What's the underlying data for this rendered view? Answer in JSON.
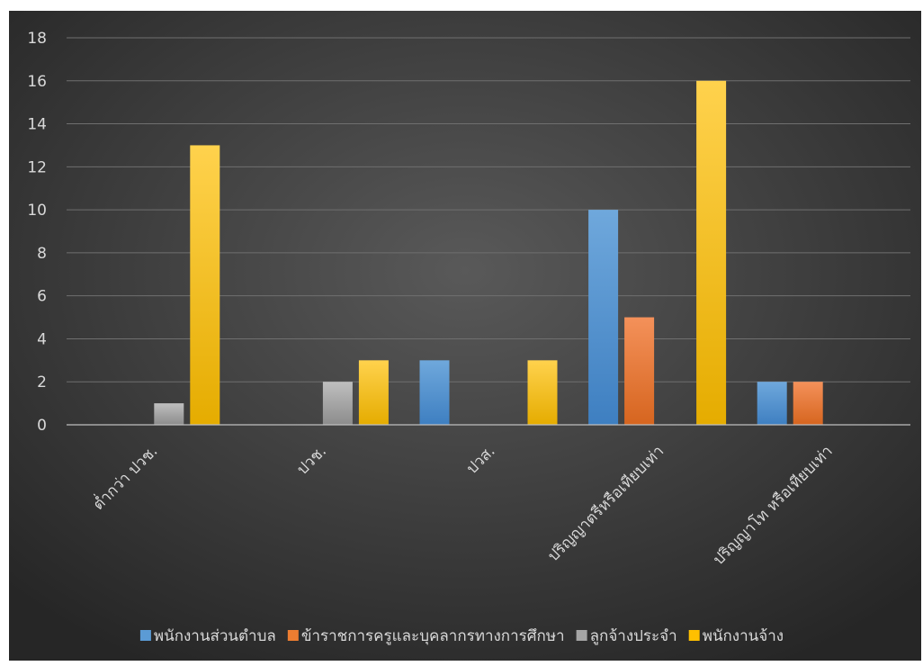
{
  "chart_data": {
    "type": "bar",
    "categories": [
      "ต่ำกว่า ปวช.",
      "ปวช.",
      "ปวส.",
      "ปริญญาตรีหรือเทียบเท่า",
      "ปริญญาโท หรือเทียบเท่า"
    ],
    "series": [
      {
        "name": "พนักงานส่วนตำบล",
        "values": [
          0,
          0,
          3,
          10,
          2
        ],
        "color": "#5b9bd5"
      },
      {
        "name": "ข้าราชการครูและบุคลากรทางการศึกษา",
        "values": [
          0,
          0,
          0,
          5,
          2
        ],
        "color": "#ed7d31"
      },
      {
        "name": "ลูกจ้างประจำ",
        "values": [
          1,
          2,
          0,
          0,
          0
        ],
        "color": "#a5a5a5"
      },
      {
        "name": "พนักงานจ้าง",
        "values": [
          13,
          3,
          3,
          16,
          0
        ],
        "color": "#ffc000"
      }
    ],
    "yticks": [
      "0",
      "2",
      "4",
      "6",
      "8",
      "10",
      "12",
      "14",
      "16",
      "18"
    ],
    "ylim": [
      0,
      18
    ],
    "grid": true,
    "legend": "bottom",
    "title": "",
    "xlabel": "",
    "ylabel": ""
  }
}
